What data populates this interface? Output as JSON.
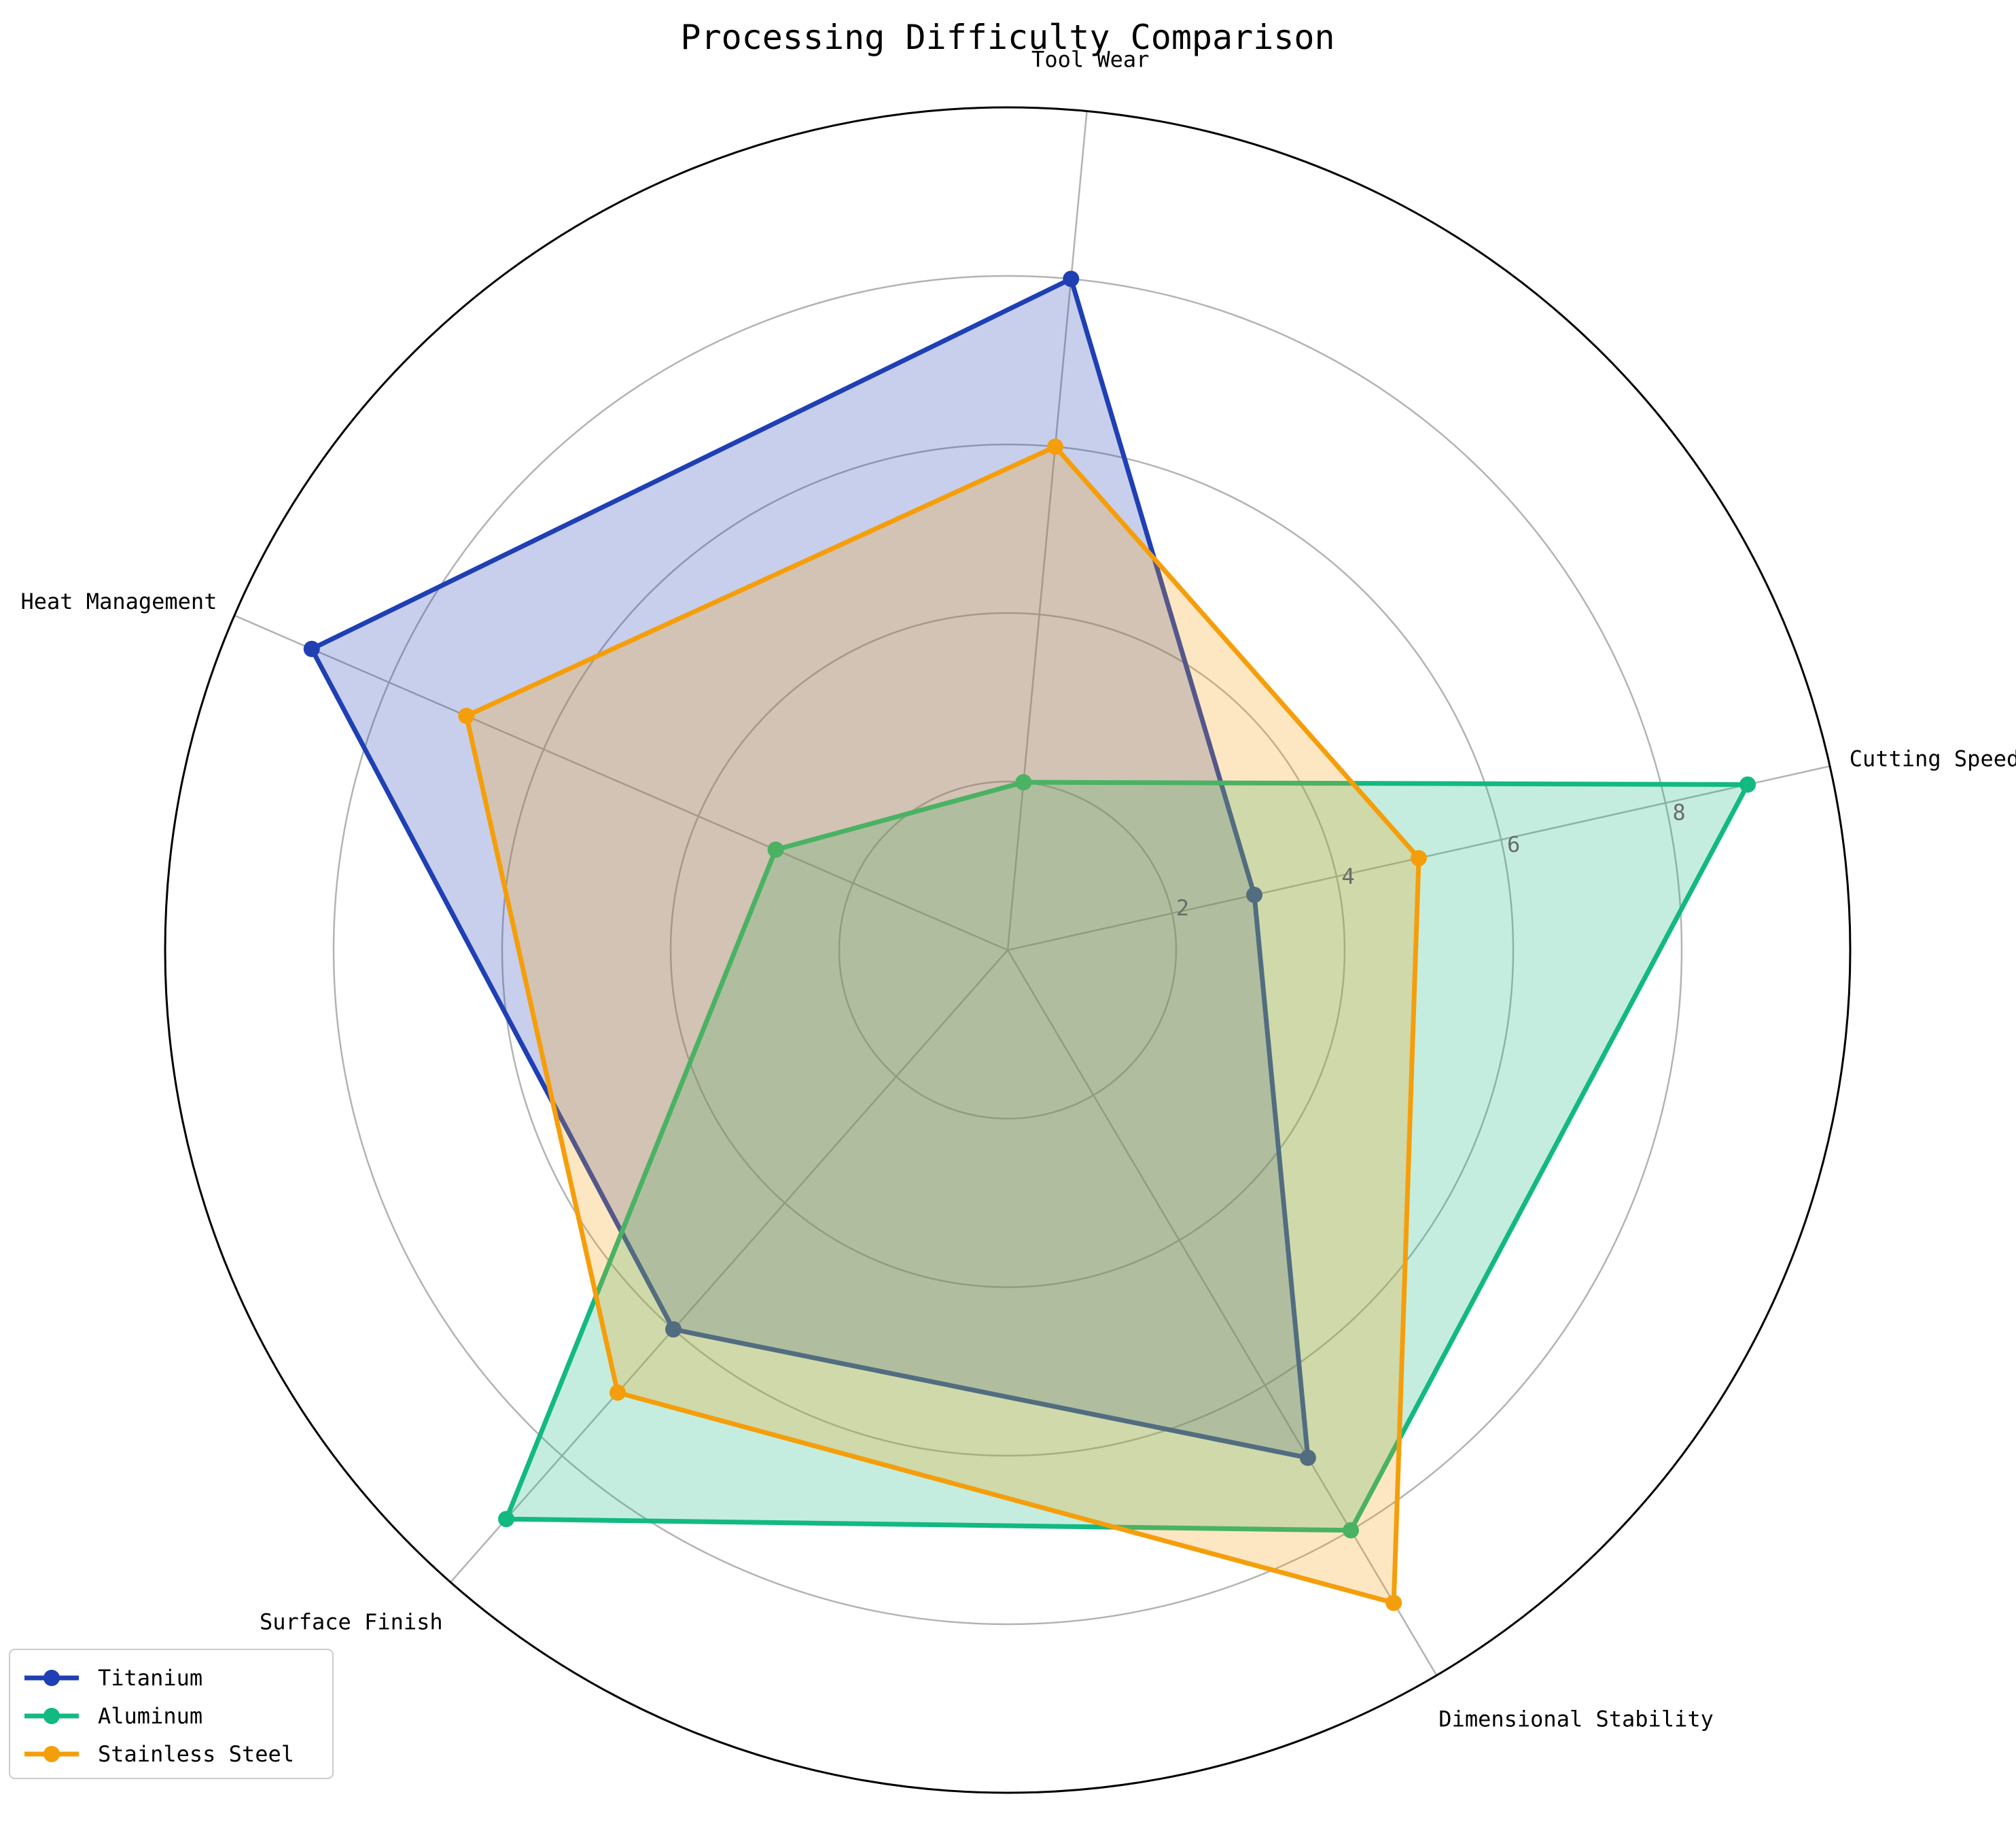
{
  "chart_data": {
    "type": "radar",
    "title": "Processing Difficulty Comparison",
    "categories": [
      "Cutting Speed",
      "Tool Wear",
      "Heat Management",
      "Surface Finish",
      "Dimensional Stability"
    ],
    "radial_range": [
      0,
      10
    ],
    "radial_ticks": [
      2,
      4,
      6,
      8
    ],
    "grid": true,
    "legend_position": "bottom-left",
    "series": [
      {
        "name": "Titanium",
        "values": [
          3,
          8,
          9,
          6,
          7
        ],
        "color": "#1f3fb4"
      },
      {
        "name": "Aluminum",
        "values": [
          9,
          2,
          3,
          9,
          8
        ],
        "color": "#12b981"
      },
      {
        "name": "Stainless Steel",
        "values": [
          5,
          6,
          7,
          7,
          9
        ],
        "color": "#f59e0b"
      }
    ]
  }
}
